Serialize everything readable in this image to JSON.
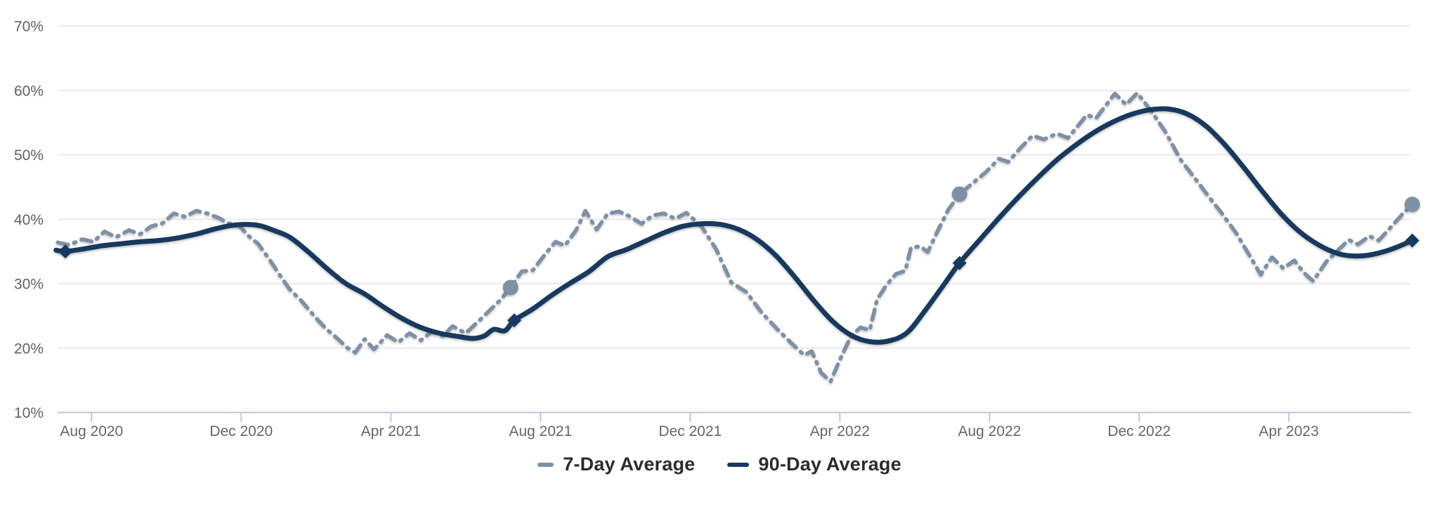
{
  "chart_data": {
    "type": "line",
    "title": "",
    "xlabel": "",
    "ylabel": "",
    "y_axis": {
      "unit": "%",
      "min": 10,
      "max": 70,
      "tick_step": 10,
      "ticks": [
        {
          "label": "70%",
          "value": 70
        },
        {
          "label": "60%",
          "value": 60
        },
        {
          "label": "50%",
          "value": 50
        },
        {
          "label": "40%",
          "value": 40
        },
        {
          "label": "30%",
          "value": 30
        },
        {
          "label": "20%",
          "value": 20
        },
        {
          "label": "10%",
          "value": 10
        }
      ]
    },
    "x_axis": {
      "note": "month index 0 = mid-July 2020; series spans mid-Jul 2020 to mid-Jul 2023",
      "ticks": [
        {
          "label": "Aug 2020",
          "month": 0.7
        },
        {
          "label": "Dec 2020",
          "month": 4.7
        },
        {
          "label": "Apr 2021",
          "month": 8.7
        },
        {
          "label": "Aug 2021",
          "month": 12.7
        },
        {
          "label": "Dec 2021",
          "month": 16.7
        },
        {
          "label": "Apr 2022",
          "month": 20.7
        },
        {
          "label": "Aug 2022",
          "month": 24.7
        },
        {
          "label": "Dec 2022",
          "month": 28.7
        },
        {
          "label": "Apr 2023",
          "month": 32.7
        }
      ]
    },
    "grid": {
      "horizontal": true,
      "vertical": false
    },
    "legend": {
      "position": "bottom-center",
      "items": [
        {
          "label": "7-Day Average",
          "color": "#7e90a5",
          "style": "dash-dot"
        },
        {
          "label": "90-Day Average",
          "color": "#17395d",
          "style": "solid"
        }
      ]
    },
    "series": [
      {
        "name": "7-Day Average",
        "style": "dash-dot",
        "color": "#7e90a5",
        "marker": {
          "shape": "circle",
          "color": "#7e90a5",
          "points": [
            [
              11.9,
              29.4
            ],
            [
              23.9,
              43.9
            ],
            [
              36.0,
              42.3
            ]
          ]
        },
        "points": [
          [
            -0.2,
            36.4
          ],
          [
            0.1,
            36.0
          ],
          [
            0.45,
            36.9
          ],
          [
            0.75,
            36.5
          ],
          [
            1.05,
            38.1
          ],
          [
            1.35,
            37.2
          ],
          [
            1.7,
            38.3
          ],
          [
            2.0,
            37.7
          ],
          [
            2.3,
            38.9
          ],
          [
            2.6,
            39.4
          ],
          [
            2.9,
            40.9
          ],
          [
            3.2,
            40.4
          ],
          [
            3.5,
            41.3
          ],
          [
            3.8,
            40.9
          ],
          [
            4.1,
            40.2
          ],
          [
            4.35,
            39.4
          ],
          [
            4.65,
            39.0
          ],
          [
            4.9,
            37.4
          ],
          [
            5.15,
            36.2
          ],
          [
            5.45,
            33.8
          ],
          [
            5.7,
            31.6
          ],
          [
            6.0,
            29.1
          ],
          [
            6.3,
            27.4
          ],
          [
            6.65,
            25.0
          ],
          [
            6.95,
            23.1
          ],
          [
            7.25,
            21.6
          ],
          [
            7.55,
            20.0
          ],
          [
            7.75,
            19.3
          ],
          [
            8.0,
            21.4
          ],
          [
            8.25,
            19.8
          ],
          [
            8.6,
            22.0
          ],
          [
            8.9,
            20.9
          ],
          [
            9.2,
            22.3
          ],
          [
            9.5,
            21.2
          ],
          [
            9.8,
            22.6
          ],
          [
            10.1,
            21.9
          ],
          [
            10.35,
            23.4
          ],
          [
            10.7,
            22.3
          ],
          [
            11.05,
            24.2
          ],
          [
            11.35,
            25.9
          ],
          [
            11.6,
            27.3
          ],
          [
            11.9,
            29.4
          ],
          [
            12.2,
            31.9
          ],
          [
            12.5,
            32.1
          ],
          [
            12.8,
            34.4
          ],
          [
            13.1,
            36.5
          ],
          [
            13.35,
            35.9
          ],
          [
            13.65,
            38.3
          ],
          [
            13.9,
            41.3
          ],
          [
            14.2,
            38.4
          ],
          [
            14.5,
            40.9
          ],
          [
            14.8,
            41.2
          ],
          [
            15.1,
            40.4
          ],
          [
            15.4,
            39.3
          ],
          [
            15.7,
            40.6
          ],
          [
            16.0,
            40.9
          ],
          [
            16.3,
            40.1
          ],
          [
            16.6,
            41.0
          ],
          [
            17.0,
            38.9
          ],
          [
            17.4,
            35.3
          ],
          [
            17.8,
            30.2
          ],
          [
            18.2,
            28.7
          ],
          [
            18.6,
            25.6
          ],
          [
            19.0,
            23.1
          ],
          [
            19.4,
            20.8
          ],
          [
            19.75,
            18.9
          ],
          [
            19.95,
            19.5
          ],
          [
            20.2,
            16.2
          ],
          [
            20.45,
            14.8
          ],
          [
            20.7,
            18.2
          ],
          [
            21.0,
            21.9
          ],
          [
            21.25,
            23.2
          ],
          [
            21.5,
            22.8
          ],
          [
            21.7,
            27.6
          ],
          [
            21.95,
            29.8
          ],
          [
            22.2,
            31.5
          ],
          [
            22.45,
            32.0
          ],
          [
            22.6,
            35.6
          ],
          [
            22.85,
            35.8
          ],
          [
            23.05,
            34.9
          ],
          [
            23.3,
            38.0
          ],
          [
            23.6,
            41.5
          ],
          [
            23.9,
            43.9
          ],
          [
            24.25,
            45.6
          ],
          [
            24.6,
            47.3
          ],
          [
            24.95,
            49.4
          ],
          [
            25.2,
            48.9
          ],
          [
            25.55,
            51.2
          ],
          [
            25.85,
            53.0
          ],
          [
            26.15,
            52.4
          ],
          [
            26.5,
            53.3
          ],
          [
            26.8,
            52.6
          ],
          [
            27.3,
            56.2
          ],
          [
            27.55,
            55.7
          ],
          [
            28.05,
            59.5
          ],
          [
            28.35,
            57.8
          ],
          [
            28.65,
            59.6
          ],
          [
            29.0,
            57.0
          ],
          [
            29.4,
            53.6
          ],
          [
            29.8,
            49.3
          ],
          [
            30.2,
            46.3
          ],
          [
            30.6,
            43.2
          ],
          [
            30.9,
            41.0
          ],
          [
            31.3,
            37.8
          ],
          [
            31.7,
            33.9
          ],
          [
            31.95,
            31.4
          ],
          [
            32.25,
            34.1
          ],
          [
            32.55,
            32.4
          ],
          [
            32.85,
            33.6
          ],
          [
            33.1,
            31.7
          ],
          [
            33.35,
            30.4
          ],
          [
            33.7,
            33.4
          ],
          [
            34.0,
            35.1
          ],
          [
            34.3,
            36.8
          ],
          [
            34.55,
            36.1
          ],
          [
            34.85,
            37.4
          ],
          [
            35.1,
            36.7
          ],
          [
            35.45,
            38.9
          ],
          [
            35.75,
            40.9
          ],
          [
            36.0,
            42.3
          ]
        ]
      },
      {
        "name": "90-Day Average",
        "style": "solid-smooth",
        "color": "#17395d",
        "marker": {
          "shape": "diamond",
          "color": "#17395d",
          "points": [
            [
              0.0,
              35.0
            ],
            [
              12.0,
              24.3
            ],
            [
              23.9,
              33.2
            ],
            [
              36.0,
              36.7
            ]
          ]
        },
        "points": [
          [
            -0.25,
            35.2
          ],
          [
            0,
            35.0
          ],
          [
            0.5,
            35.4
          ],
          [
            1,
            35.9
          ],
          [
            1.5,
            36.2
          ],
          [
            2,
            36.5
          ],
          [
            2.5,
            36.7
          ],
          [
            3,
            37.1
          ],
          [
            3.5,
            37.7
          ],
          [
            4,
            38.5
          ],
          [
            4.4,
            39.0
          ],
          [
            4.8,
            39.2
          ],
          [
            5.2,
            39.0
          ],
          [
            5.6,
            38.2
          ],
          [
            6,
            37.2
          ],
          [
            6.5,
            34.9
          ],
          [
            7,
            32.3
          ],
          [
            7.5,
            30.0
          ],
          [
            8,
            28.4
          ],
          [
            8.5,
            26.4
          ],
          [
            9,
            24.6
          ],
          [
            9.5,
            23.2
          ],
          [
            10,
            22.3
          ],
          [
            10.5,
            21.8
          ],
          [
            10.9,
            21.5
          ],
          [
            11.2,
            21.9
          ],
          [
            11.45,
            22.9
          ],
          [
            11.75,
            22.7
          ],
          [
            12,
            24.3
          ],
          [
            12.5,
            26.1
          ],
          [
            13,
            28.2
          ],
          [
            13.5,
            30.1
          ],
          [
            14,
            31.9
          ],
          [
            14.5,
            34.2
          ],
          [
            15,
            35.3
          ],
          [
            15.5,
            36.6
          ],
          [
            16,
            37.9
          ],
          [
            16.5,
            38.9
          ],
          [
            17,
            39.3
          ],
          [
            17.5,
            39.2
          ],
          [
            18,
            38.4
          ],
          [
            18.5,
            36.8
          ],
          [
            19,
            34.3
          ],
          [
            19.5,
            31.0
          ],
          [
            20,
            27.4
          ],
          [
            20.5,
            24.2
          ],
          [
            21,
            22.0
          ],
          [
            21.5,
            21.0
          ],
          [
            22,
            21.1
          ],
          [
            22.5,
            22.4
          ],
          [
            23,
            26.0
          ],
          [
            23.5,
            30.0
          ],
          [
            23.9,
            33.2
          ],
          [
            24.5,
            37.2
          ],
          [
            25,
            40.5
          ],
          [
            25.5,
            43.6
          ],
          [
            26,
            46.5
          ],
          [
            26.5,
            49.2
          ],
          [
            27,
            51.5
          ],
          [
            27.5,
            53.5
          ],
          [
            28,
            55.1
          ],
          [
            28.5,
            56.3
          ],
          [
            29,
            57.0
          ],
          [
            29.5,
            57.1
          ],
          [
            30,
            56.3
          ],
          [
            30.5,
            54.4
          ],
          [
            31,
            51.5
          ],
          [
            31.5,
            48.0
          ],
          [
            32,
            44.3
          ],
          [
            32.5,
            40.8
          ],
          [
            33,
            38.0
          ],
          [
            33.5,
            36.0
          ],
          [
            34,
            34.7
          ],
          [
            34.4,
            34.3
          ],
          [
            34.8,
            34.4
          ],
          [
            35.2,
            34.9
          ],
          [
            35.6,
            35.7
          ],
          [
            36,
            36.7
          ]
        ]
      }
    ]
  },
  "colors": {
    "background": "#ffffff",
    "gridline": "#e4e4e4",
    "axis_line": "#bac9d8",
    "y_label": "#5e6165",
    "x_label": "#63666a",
    "legend_text": "#2c2c2e",
    "series_7day": "#7e90a5",
    "series_90day": "#17395d"
  }
}
